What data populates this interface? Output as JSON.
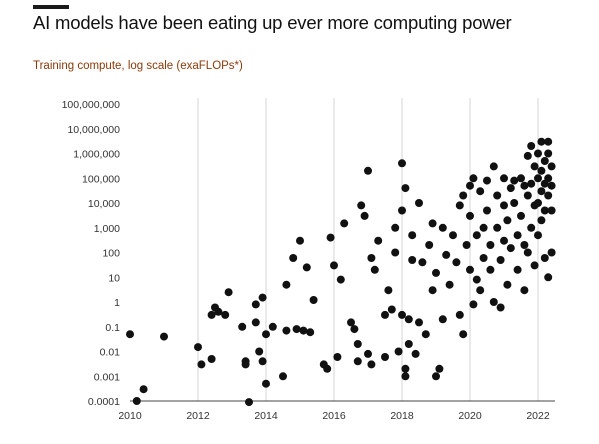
{
  "chart_data": {
    "type": "scatter",
    "title": "AI models have been eating up ever more computing power",
    "subtitle": "Training compute, log scale (exaFLOPs*)",
    "y_scale": "log",
    "ylim": [
      0.0001,
      100000000
    ],
    "xlim": [
      2010,
      2022.5
    ],
    "grid": "vertical",
    "point_color": "#111111",
    "accent_color": "#1a1a1a",
    "subtitle_color": "#8a3a0a",
    "yticks": [
      "100,000,000",
      "10,000,000",
      "1,000,000",
      "100,000",
      "10,000",
      "1,000",
      "100",
      "10",
      "1",
      "0.1",
      "0.01",
      "0.001",
      "0.0001"
    ],
    "xticks": [
      "2010",
      "2012",
      "2014",
      "2016",
      "2018",
      "2020",
      "2022"
    ],
    "points": [
      [
        2010.0,
        0.05
      ],
      [
        2010.2,
        0.0001
      ],
      [
        2010.4,
        0.0003
      ],
      [
        2011.0,
        0.04
      ],
      [
        2012.0,
        0.015
      ],
      [
        2012.1,
        0.003
      ],
      [
        2012.4,
        0.005
      ],
      [
        2012.4,
        0.3
      ],
      [
        2012.5,
        0.6
      ],
      [
        2012.6,
        0.4
      ],
      [
        2012.8,
        0.3
      ],
      [
        2012.9,
        2.5
      ],
      [
        2013.3,
        0.1
      ],
      [
        2013.4,
        0.004
      ],
      [
        2013.4,
        0.003
      ],
      [
        2013.5,
        9e-05
      ],
      [
        2013.7,
        0.15
      ],
      [
        2013.7,
        0.8
      ],
      [
        2013.8,
        0.01
      ],
      [
        2013.9,
        0.004
      ],
      [
        2013.9,
        1.5
      ],
      [
        2014.0,
        0.0005
      ],
      [
        2014.0,
        0.05
      ],
      [
        2014.2,
        0.1
      ],
      [
        2014.5,
        0.001
      ],
      [
        2014.6,
        0.07
      ],
      [
        2014.6,
        5
      ],
      [
        2014.8,
        60
      ],
      [
        2014.9,
        0.08
      ],
      [
        2015.0,
        300
      ],
      [
        2015.1,
        0.07
      ],
      [
        2015.2,
        25
      ],
      [
        2015.3,
        0.06
      ],
      [
        2015.4,
        1.2
      ],
      [
        2015.7,
        0.003
      ],
      [
        2015.8,
        0.002
      ],
      [
        2015.9,
        400
      ],
      [
        2016.0,
        30
      ],
      [
        2016.1,
        0.006
      ],
      [
        2016.2,
        8
      ],
      [
        2016.3,
        1500
      ],
      [
        2016.5,
        0.15
      ],
      [
        2016.6,
        0.08
      ],
      [
        2016.7,
        0.02
      ],
      [
        2016.7,
        0.004
      ],
      [
        2016.8,
        8000
      ],
      [
        2016.9,
        3000
      ],
      [
        2017.0,
        200000
      ],
      [
        2017.0,
        0.008
      ],
      [
        2017.1,
        0.003
      ],
      [
        2017.1,
        60
      ],
      [
        2017.2,
        20
      ],
      [
        2017.3,
        300
      ],
      [
        2017.5,
        0.3
      ],
      [
        2017.5,
        0.006
      ],
      [
        2017.6,
        3
      ],
      [
        2017.7,
        0.5
      ],
      [
        2017.8,
        1000
      ],
      [
        2017.8,
        100
      ],
      [
        2017.9,
        0.01
      ],
      [
        2018.0,
        0.3
      ],
      [
        2018.1,
        0.001
      ],
      [
        2018.0,
        5000
      ],
      [
        2018.0,
        400000
      ],
      [
        2018.1,
        40000
      ],
      [
        2018.1,
        0.002
      ],
      [
        2018.2,
        0.2
      ],
      [
        2018.2,
        0.02
      ],
      [
        2018.3,
        500
      ],
      [
        2018.3,
        50
      ],
      [
        2018.4,
        0.008
      ],
      [
        2018.5,
        10000
      ],
      [
        2018.5,
        0.15
      ],
      [
        2018.6,
        40
      ],
      [
        2018.7,
        0.05
      ],
      [
        2018.8,
        200
      ],
      [
        2018.9,
        1500
      ],
      [
        2018.9,
        3
      ],
      [
        2019.0,
        0.001
      ],
      [
        2019.0,
        15
      ],
      [
        2019.1,
        0.002
      ],
      [
        2019.2,
        1000
      ],
      [
        2019.2,
        0.2
      ],
      [
        2019.3,
        80
      ],
      [
        2019.4,
        5
      ],
      [
        2019.5,
        500
      ],
      [
        2019.6,
        40
      ],
      [
        2019.7,
        8000
      ],
      [
        2019.7,
        0.3
      ],
      [
        2019.8,
        20000
      ],
      [
        2019.8,
        0.05
      ],
      [
        2019.9,
        200
      ],
      [
        2020.0,
        50000
      ],
      [
        2020.0,
        3000
      ],
      [
        2020.0,
        20
      ],
      [
        2020.1,
        0.8
      ],
      [
        2020.1,
        100000
      ],
      [
        2020.2,
        500
      ],
      [
        2020.2,
        8
      ],
      [
        2020.3,
        30000
      ],
      [
        2020.3,
        3
      ],
      [
        2020.4,
        1000
      ],
      [
        2020.4,
        60
      ],
      [
        2020.5,
        80000
      ],
      [
        2020.5,
        5000
      ],
      [
        2020.6,
        200
      ],
      [
        2020.6,
        20
      ],
      [
        2020.7,
        300000
      ],
      [
        2020.7,
        1
      ],
      [
        2020.8,
        20000
      ],
      [
        2020.8,
        1000
      ],
      [
        2020.9,
        50
      ],
      [
        2020.9,
        0.6
      ],
      [
        2021.0,
        100000
      ],
      [
        2021.0,
        8000
      ],
      [
        2021.0,
        300
      ],
      [
        2021.1,
        5
      ],
      [
        2021.1,
        2000
      ],
      [
        2021.2,
        40000
      ],
      [
        2021.2,
        150
      ],
      [
        2021.3,
        80000
      ],
      [
        2021.3,
        10000
      ],
      [
        2021.4,
        500
      ],
      [
        2021.4,
        20
      ],
      [
        2021.5,
        100000
      ],
      [
        2021.5,
        3000
      ],
      [
        2021.6,
        50000
      ],
      [
        2021.6,
        200
      ],
      [
        2021.6,
        3
      ],
      [
        2021.7,
        800000
      ],
      [
        2021.7,
        20000
      ],
      [
        2021.7,
        100
      ],
      [
        2021.8,
        2000000
      ],
      [
        2021.8,
        60000
      ],
      [
        2021.8,
        1000
      ],
      [
        2021.9,
        300000
      ],
      [
        2021.9,
        8000
      ],
      [
        2021.9,
        30
      ],
      [
        2022.0,
        1000000
      ],
      [
        2022.0,
        100000
      ],
      [
        2022.0,
        10000
      ],
      [
        2022.0,
        500
      ],
      [
        2022.1,
        3000000
      ],
      [
        2022.1,
        200000
      ],
      [
        2022.1,
        30000
      ],
      [
        2022.1,
        2000
      ],
      [
        2022.2,
        500000
      ],
      [
        2022.2,
        60000
      ],
      [
        2022.2,
        5000
      ],
      [
        2022.2,
        60
      ],
      [
        2022.3,
        3000000
      ],
      [
        2022.3,
        1000000
      ],
      [
        2022.3,
        100000
      ],
      [
        2022.3,
        20000
      ],
      [
        2022.3,
        10
      ],
      [
        2022.4,
        300000
      ],
      [
        2022.4,
        50000
      ],
      [
        2022.4,
        5000
      ],
      [
        2022.4,
        100
      ]
    ]
  }
}
